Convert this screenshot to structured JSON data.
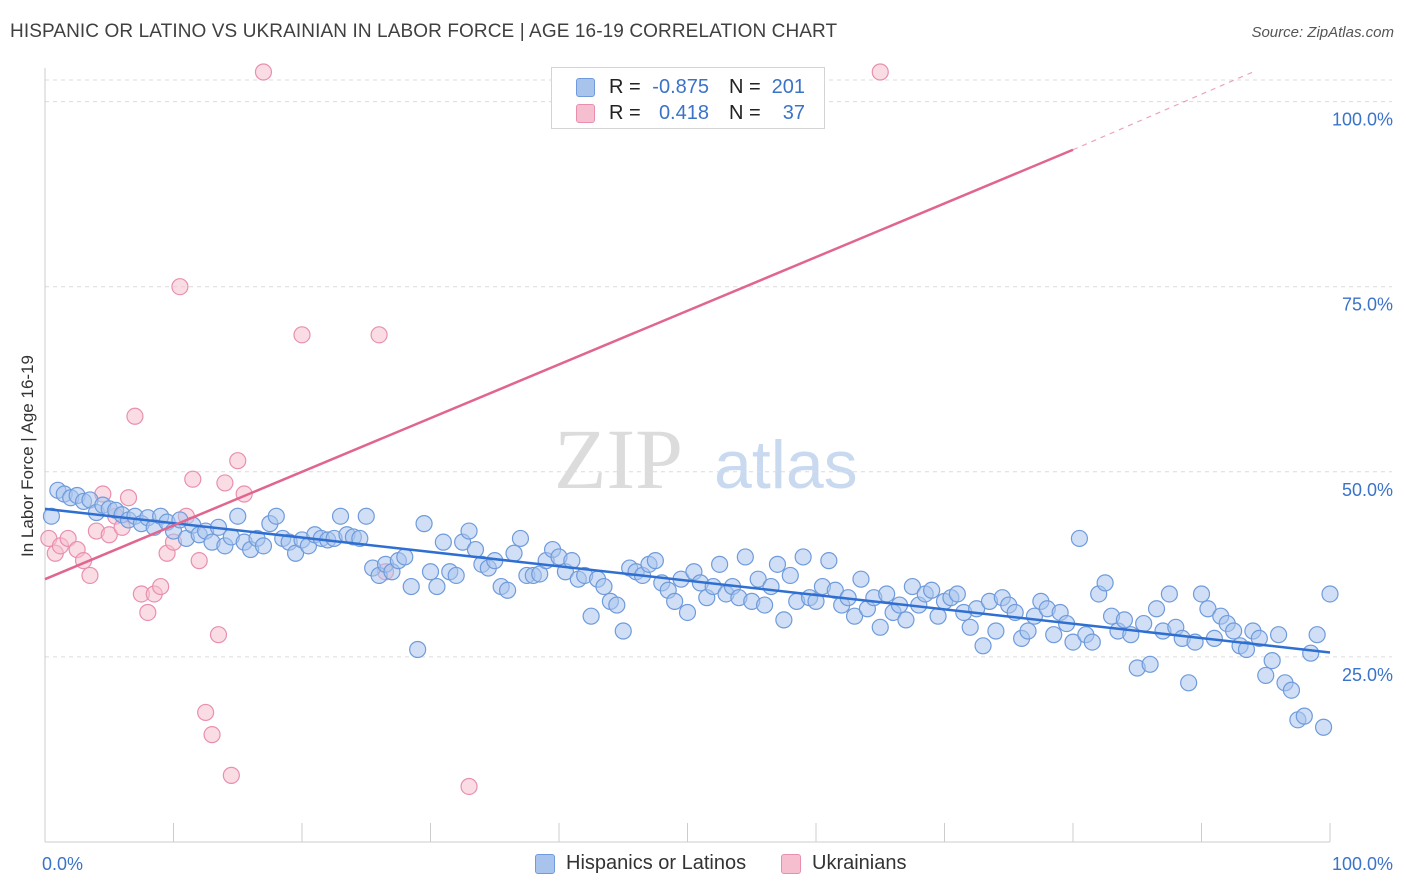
{
  "header": {
    "title": "HISPANIC OR LATINO VS UKRAINIAN IN LABOR FORCE | AGE 16-19 CORRELATION CHART",
    "source": "Source: ZipAtlas.com"
  },
  "watermark": {
    "zip": "ZIP",
    "atlas": "atlas"
  },
  "legend": {
    "rows": [
      {
        "r_label": "R =",
        "r_value": "-0.875",
        "n_label": "N =",
        "n_value": "201",
        "color": "#a9c4ec",
        "border": "#6f9bdc"
      },
      {
        "r_label": "R =",
        "r_value": "0.418",
        "n_label": "N =",
        "n_value": "37",
        "color": "#f6bfd0",
        "border": "#e98fae"
      }
    ]
  },
  "bottom_legend": {
    "items": [
      {
        "label": "Hispanics or Latinos",
        "color": "#a9c4ec",
        "border": "#6f9bdc"
      },
      {
        "label": "Ukrainians",
        "color": "#f6bfd0",
        "border": "#e98fae"
      }
    ]
  },
  "colors": {
    "blue_fill": "#a9c4ec",
    "blue_stroke": "#6f9bdc",
    "blue_line": "#2f6fd1",
    "pink_fill": "#f6bfd0",
    "pink_stroke": "#e98fae",
    "pink_line": "#e0658f",
    "grid": "#dcdcdc",
    "axis_text": "#3a73c9"
  },
  "chart_data": {
    "type": "scatter",
    "title": "HISPANIC OR LATINO VS UKRAINIAN IN LABOR FORCE | AGE 16-19 CORRELATION CHART",
    "xlabel": "",
    "ylabel": "In Labor Force | Age 16-19",
    "xlim": [
      0,
      100
    ],
    "ylim": [
      0,
      104
    ],
    "x_tick_labels": [
      "0.0%",
      "100.0%"
    ],
    "y_ticks": [
      25,
      50,
      75,
      100
    ],
    "y_tick_labels": [
      "25.0%",
      "50.0%",
      "75.0%",
      "100.0%"
    ],
    "grid": true,
    "legend_position": "top-center",
    "series": [
      {
        "name": "Hispanics or Latinos",
        "color": "#a9c4ec",
        "trend": {
          "x": [
            0,
            100
          ],
          "y": [
            45.0,
            25.6
          ]
        },
        "points": [
          [
            0.5,
            44.0
          ],
          [
            1.0,
            47.5
          ],
          [
            1.5,
            47.0
          ],
          [
            2.0,
            46.5
          ],
          [
            2.5,
            46.8
          ],
          [
            3.0,
            46.0
          ],
          [
            3.5,
            46.2
          ],
          [
            4.0,
            44.5
          ],
          [
            4.5,
            45.5
          ],
          [
            5.0,
            45.0
          ],
          [
            5.5,
            44.8
          ],
          [
            6.0,
            44.2
          ],
          [
            6.5,
            43.5
          ],
          [
            7.0,
            44.0
          ],
          [
            7.5,
            43.0
          ],
          [
            8.0,
            43.8
          ],
          [
            8.5,
            42.5
          ],
          [
            9.0,
            44.0
          ],
          [
            9.5,
            43.2
          ],
          [
            10.0,
            42.0
          ],
          [
            10.5,
            43.5
          ],
          [
            11.0,
            41.0
          ],
          [
            11.5,
            42.8
          ],
          [
            12.0,
            41.5
          ],
          [
            12.5,
            42.0
          ],
          [
            13.0,
            40.5
          ],
          [
            13.5,
            42.5
          ],
          [
            14.0,
            40.0
          ],
          [
            14.5,
            41.2
          ],
          [
            15.0,
            44.0
          ],
          [
            15.5,
            40.5
          ],
          [
            16.0,
            39.5
          ],
          [
            16.5,
            41.0
          ],
          [
            17.0,
            40.0
          ],
          [
            17.5,
            43.0
          ],
          [
            18.0,
            44.0
          ],
          [
            18.5,
            41.0
          ],
          [
            19.0,
            40.5
          ],
          [
            19.5,
            39.0
          ],
          [
            20.0,
            40.8
          ],
          [
            20.5,
            40.0
          ],
          [
            21.0,
            41.5
          ],
          [
            21.5,
            41.0
          ],
          [
            22.0,
            40.8
          ],
          [
            22.5,
            41.0
          ],
          [
            23.0,
            44.0
          ],
          [
            23.5,
            41.5
          ],
          [
            24.0,
            41.2
          ],
          [
            24.5,
            41.0
          ],
          [
            25.0,
            44.0
          ],
          [
            25.5,
            37.0
          ],
          [
            26.0,
            36.0
          ],
          [
            26.5,
            37.5
          ],
          [
            27.0,
            36.5
          ],
          [
            27.5,
            38.0
          ],
          [
            28.0,
            38.5
          ],
          [
            28.5,
            34.5
          ],
          [
            29.0,
            26.0
          ],
          [
            29.5,
            43.0
          ],
          [
            30.0,
            36.5
          ],
          [
            30.5,
            34.5
          ],
          [
            31.0,
            40.5
          ],
          [
            31.5,
            36.5
          ],
          [
            32.0,
            36.0
          ],
          [
            32.5,
            40.5
          ],
          [
            33.0,
            42.0
          ],
          [
            33.5,
            39.5
          ],
          [
            34.0,
            37.5
          ],
          [
            34.5,
            37.0
          ],
          [
            35.0,
            38.0
          ],
          [
            35.5,
            34.5
          ],
          [
            36.0,
            34.0
          ],
          [
            36.5,
            39.0
          ],
          [
            37.0,
            41.0
          ],
          [
            37.5,
            36.0
          ],
          [
            38.0,
            36.0
          ],
          [
            38.5,
            36.2
          ],
          [
            39.0,
            38.0
          ],
          [
            39.5,
            39.5
          ],
          [
            40.0,
            38.5
          ],
          [
            40.5,
            36.5
          ],
          [
            41.0,
            38.0
          ],
          [
            41.5,
            35.5
          ],
          [
            42.0,
            36.0
          ],
          [
            42.5,
            30.5
          ],
          [
            43.0,
            35.5
          ],
          [
            43.5,
            34.5
          ],
          [
            44.0,
            32.5
          ],
          [
            44.5,
            32.0
          ],
          [
            45.0,
            28.5
          ],
          [
            45.5,
            37.0
          ],
          [
            46.0,
            36.5
          ],
          [
            46.5,
            36.0
          ],
          [
            47.0,
            37.5
          ],
          [
            47.5,
            38.0
          ],
          [
            48.0,
            35.0
          ],
          [
            48.5,
            34.0
          ],
          [
            49.0,
            32.5
          ],
          [
            49.5,
            35.5
          ],
          [
            50.0,
            31.0
          ],
          [
            50.5,
            36.5
          ],
          [
            51.0,
            35.0
          ],
          [
            51.5,
            33.0
          ],
          [
            52.0,
            34.5
          ],
          [
            52.5,
            37.5
          ],
          [
            53.0,
            33.5
          ],
          [
            53.5,
            34.5
          ],
          [
            54.0,
            33.0
          ],
          [
            54.5,
            38.5
          ],
          [
            55.0,
            32.5
          ],
          [
            55.5,
            35.5
          ],
          [
            56.0,
            32.0
          ],
          [
            56.5,
            34.5
          ],
          [
            57.0,
            37.5
          ],
          [
            57.5,
            30.0
          ],
          [
            58.0,
            36.0
          ],
          [
            58.5,
            32.5
          ],
          [
            59.0,
            38.5
          ],
          [
            59.5,
            33.0
          ],
          [
            60.0,
            32.5
          ],
          [
            60.5,
            34.5
          ],
          [
            61.0,
            38.0
          ],
          [
            61.5,
            34.0
          ],
          [
            62.0,
            32.0
          ],
          [
            62.5,
            33.0
          ],
          [
            63.0,
            30.5
          ],
          [
            63.5,
            35.5
          ],
          [
            64.0,
            31.5
          ],
          [
            64.5,
            33.0
          ],
          [
            65.0,
            29.0
          ],
          [
            65.5,
            33.5
          ],
          [
            66.0,
            31.0
          ],
          [
            66.5,
            32.0
          ],
          [
            67.0,
            30.0
          ],
          [
            67.5,
            34.5
          ],
          [
            68.0,
            32.0
          ],
          [
            68.5,
            33.5
          ],
          [
            69.0,
            34.0
          ],
          [
            69.5,
            30.5
          ],
          [
            70.0,
            32.5
          ],
          [
            70.5,
            33.0
          ],
          [
            71.0,
            33.5
          ],
          [
            71.5,
            31.0
          ],
          [
            72.0,
            29.0
          ],
          [
            72.5,
            31.5
          ],
          [
            73.0,
            26.5
          ],
          [
            73.5,
            32.5
          ],
          [
            74.0,
            28.5
          ],
          [
            74.5,
            33.0
          ],
          [
            75.0,
            32.0
          ],
          [
            75.5,
            31.0
          ],
          [
            76.0,
            27.5
          ],
          [
            76.5,
            28.5
          ],
          [
            77.0,
            30.5
          ],
          [
            77.5,
            32.5
          ],
          [
            78.0,
            31.5
          ],
          [
            78.5,
            28.0
          ],
          [
            79.0,
            31.0
          ],
          [
            79.5,
            29.5
          ],
          [
            80.0,
            27.0
          ],
          [
            80.5,
            41.0
          ],
          [
            81.0,
            28.0
          ],
          [
            81.5,
            27.0
          ],
          [
            82.0,
            33.5
          ],
          [
            82.5,
            35.0
          ],
          [
            83.0,
            30.5
          ],
          [
            83.5,
            28.5
          ],
          [
            84.0,
            30.0
          ],
          [
            84.5,
            28.0
          ],
          [
            85.0,
            23.5
          ],
          [
            85.5,
            29.5
          ],
          [
            86.0,
            24.0
          ],
          [
            86.5,
            31.5
          ],
          [
            87.0,
            28.5
          ],
          [
            87.5,
            33.5
          ],
          [
            88.0,
            29.0
          ],
          [
            88.5,
            27.5
          ],
          [
            89.0,
            21.5
          ],
          [
            89.5,
            27.0
          ],
          [
            90.0,
            33.5
          ],
          [
            90.5,
            31.5
          ],
          [
            91.0,
            27.5
          ],
          [
            91.5,
            30.5
          ],
          [
            92.0,
            29.5
          ],
          [
            92.5,
            28.5
          ],
          [
            93.0,
            26.5
          ],
          [
            93.5,
            26.0
          ],
          [
            94.0,
            28.5
          ],
          [
            94.5,
            27.5
          ],
          [
            95.0,
            22.5
          ],
          [
            95.5,
            24.5
          ],
          [
            96.0,
            28.0
          ],
          [
            96.5,
            21.5
          ],
          [
            97.0,
            20.5
          ],
          [
            97.5,
            16.5
          ],
          [
            98.0,
            17.0
          ],
          [
            98.5,
            25.5
          ],
          [
            99.0,
            28.0
          ],
          [
            99.5,
            15.5
          ],
          [
            100.0,
            33.5
          ]
        ]
      },
      {
        "name": "Ukrainians",
        "color": "#f6bfd0",
        "trend": {
          "x": [
            0,
            80
          ],
          "y": [
            35.5,
            93.5
          ],
          "dashed_to": [
            94,
            104
          ]
        },
        "points": [
          [
            0.3,
            41.0
          ],
          [
            0.8,
            39.0
          ],
          [
            1.2,
            40.0
          ],
          [
            1.8,
            41.0
          ],
          [
            2.5,
            39.5
          ],
          [
            3.0,
            38.0
          ],
          [
            3.5,
            36.0
          ],
          [
            4.0,
            42.0
          ],
          [
            4.5,
            47.0
          ],
          [
            5.0,
            41.5
          ],
          [
            5.5,
            44.0
          ],
          [
            6.0,
            42.5
          ],
          [
            6.5,
            46.5
          ],
          [
            7.0,
            57.5
          ],
          [
            7.5,
            33.5
          ],
          [
            8.0,
            31.0
          ],
          [
            8.5,
            33.5
          ],
          [
            9.0,
            34.5
          ],
          [
            9.5,
            39.0
          ],
          [
            10.0,
            40.5
          ],
          [
            10.5,
            75.0
          ],
          [
            11.0,
            44.0
          ],
          [
            11.5,
            49.0
          ],
          [
            12.0,
            38.0
          ],
          [
            12.5,
            17.5
          ],
          [
            13.0,
            14.5
          ],
          [
            13.5,
            28.0
          ],
          [
            14.0,
            48.5
          ],
          [
            14.5,
            9.0
          ],
          [
            15.0,
            51.5
          ],
          [
            15.5,
            47.0
          ],
          [
            17.0,
            104.0
          ],
          [
            20.0,
            68.5
          ],
          [
            26.0,
            68.5
          ],
          [
            26.5,
            36.5
          ],
          [
            33.0,
            7.5
          ],
          [
            65.0,
            104.0
          ]
        ]
      }
    ]
  }
}
